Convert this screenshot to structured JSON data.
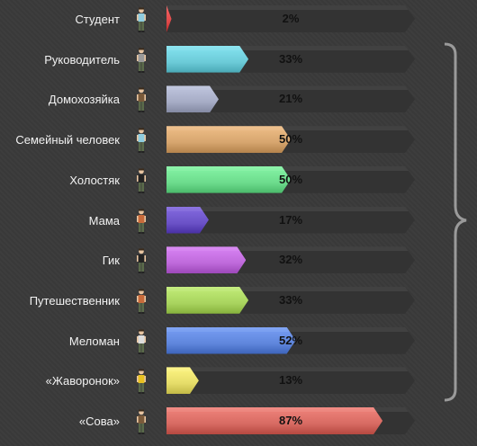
{
  "chart_data": {
    "type": "bar",
    "orientation": "horizontal",
    "xlim": [
      0,
      100
    ],
    "categories": [
      "Студент",
      "Руководитель",
      "Домохозяйка",
      "Семейный человек",
      "Холостяк",
      "Мама",
      "Гик",
      "Путешественник",
      "Меломан",
      "«Жаворонок»",
      "«Сова»"
    ],
    "values": [
      2,
      33,
      21,
      50,
      50,
      17,
      32,
      33,
      52,
      13,
      87
    ],
    "value_labels": [
      "2%",
      "33%",
      "21%",
      "50%",
      "50%",
      "17%",
      "32%",
      "33%",
      "52%",
      "13%",
      "87%"
    ],
    "colors": [
      "#e04a4a",
      "#6ccbd8",
      "#a7adc6",
      "#d7a66f",
      "#6ddc8d",
      "#6b52c7",
      "#c06bdc",
      "#a9d45f",
      "#5f86dc",
      "#e6dd6a",
      "#d86b63"
    ],
    "shirt_colors": [
      "#8fcde0",
      "#9a9a9a",
      "#7a5a3a",
      "#8fcde0",
      "#222222",
      "#c86a3a",
      "#222222",
      "#c86a3a",
      "#dddddd",
      "#e8c020",
      "#7a5a3a"
    ],
    "bracket": "right"
  }
}
